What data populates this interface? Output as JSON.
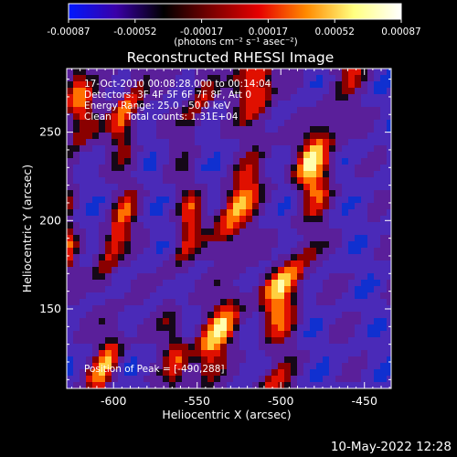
{
  "colorbar": {
    "ticks": [
      "-0.00087",
      "-0.00052",
      "-0.00017",
      "0.00017",
      "0.00052",
      "0.00087"
    ],
    "units_label": "(photons cm⁻² s⁻¹ asec⁻²)",
    "colors": [
      "#0018ff",
      "#3a00a8",
      "#000000",
      "#7a0000",
      "#e60000",
      "#ff8a00",
      "#ffff80",
      "#ffffff"
    ]
  },
  "image": {
    "title": "Reconstructed RHESSI Image",
    "info_lines": [
      "17-Oct-2010 00:08:28.000 to 00:14:04",
      "Detectors: 3F 4F 5F 6F 7F 8F, Att 0",
      "Energy Range: 25.0 - 50.0 keV",
      "Clean     Total counts: 1.31E+04"
    ],
    "peak_label": "Position of Peak = [-490,288]",
    "palette": [
      "#1030d0",
      "#4a2ab8",
      "#5a1f9a",
      "#150818",
      "#8a0000",
      "#e01000",
      "#ff7000",
      "#ffd040",
      "#ffffb0"
    ]
  },
  "axes": {
    "xlabel": "Heliocentric X (arcsec)",
    "ylabel": "Heliocentric Y (arcsec)",
    "xticks": [
      "-600",
      "-550",
      "-500",
      "-450"
    ],
    "yticks": [
      "150",
      "200",
      "250"
    ],
    "xtick_values": [
      -600,
      -550,
      -500,
      -450
    ],
    "ytick_values": [
      150,
      200,
      250
    ],
    "xlim": [
      -628,
      -434
    ],
    "ylim": [
      105,
      286
    ]
  },
  "footer": {
    "timestamp": "10-May-2022 12:28"
  }
}
